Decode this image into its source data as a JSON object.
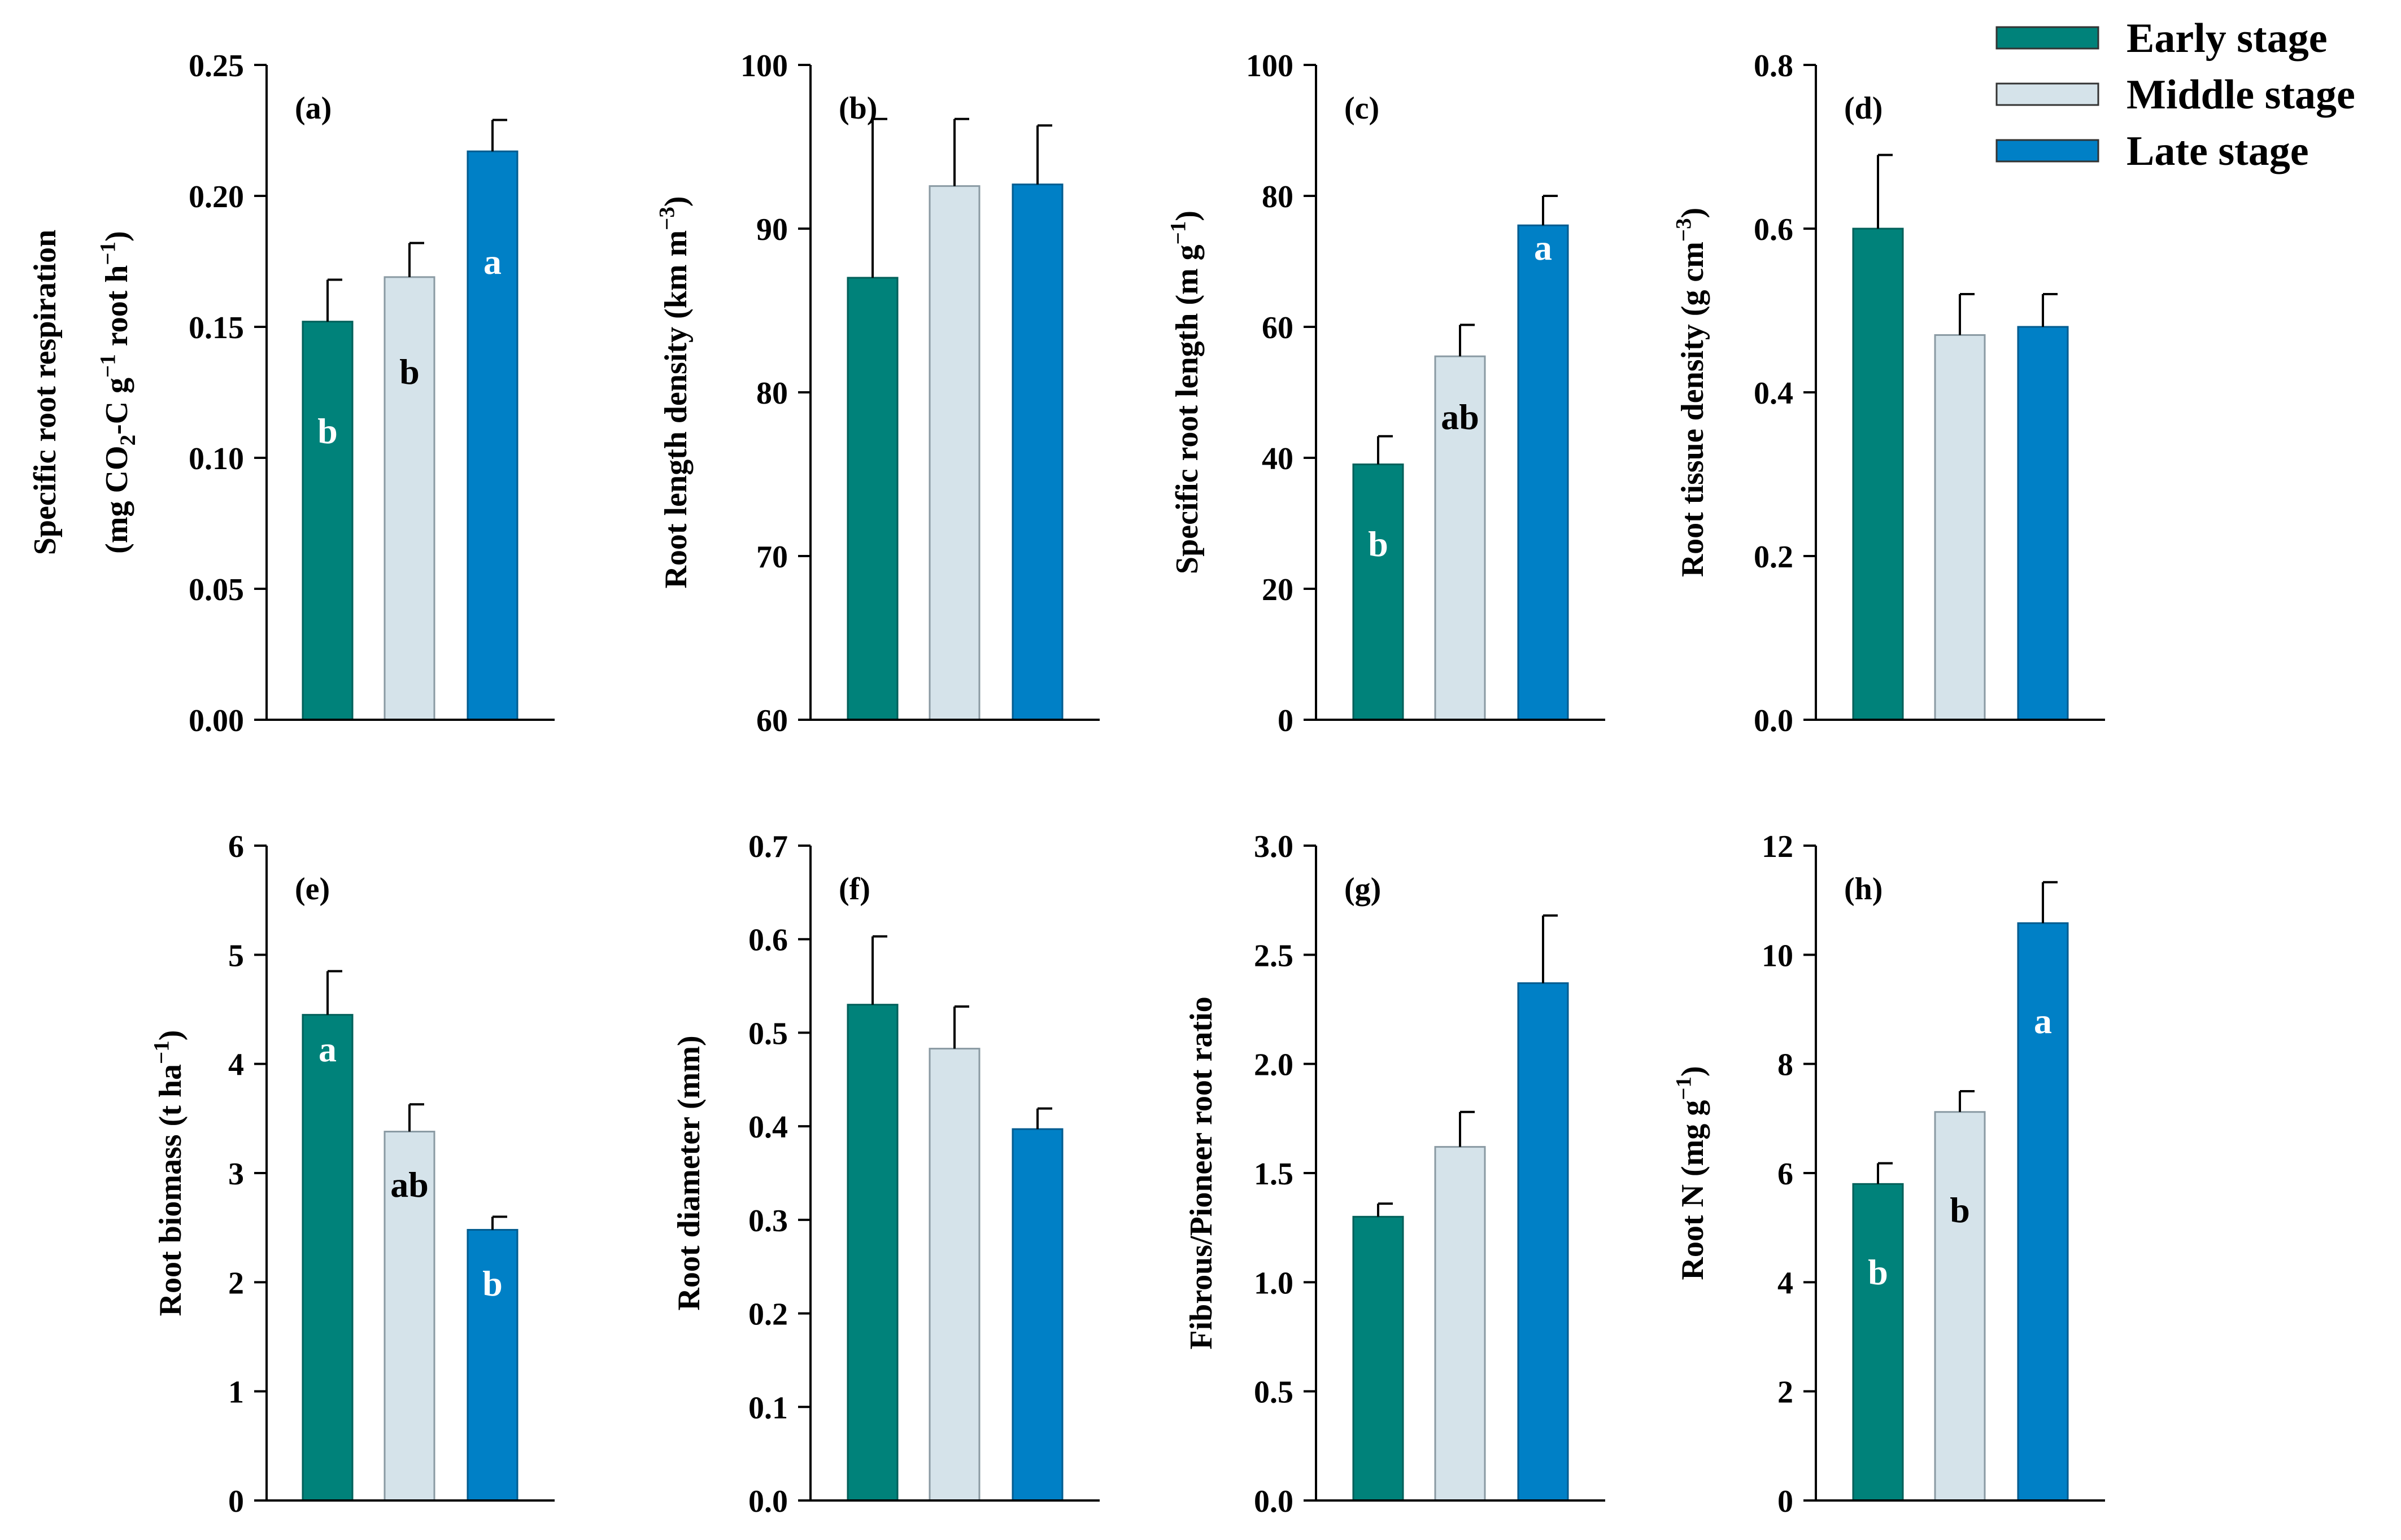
{
  "legend": {
    "placement": "top-right",
    "entries": [
      {
        "name": "Early stage",
        "color": "#00827a"
      },
      {
        "name": "Middle stage",
        "color": "#d5e3ea"
      },
      {
        "name": "Late stage",
        "color": "#0080c6"
      }
    ]
  },
  "chart_data": [
    {
      "type": "bar",
      "panel_label": "(a)",
      "ylabel_line1": "Specific root respiration",
      "ylabel_line2": {
        "parts": [
          "(mg CO",
          "2",
          "-C g",
          "−1",
          " root h",
          "−1",
          ")"
        ],
        "styles": [
          "n",
          "sub",
          "n",
          "sup",
          "n",
          "sup",
          "n"
        ]
      },
      "ylim": [
        0,
        0.25
      ],
      "ticks": [
        "0.00",
        "0.05",
        "0.10",
        "0.15",
        "0.20",
        "0.25"
      ],
      "categories": [
        "Early stage",
        "Middle stage",
        "Late stage"
      ],
      "values": [
        0.152,
        0.169,
        0.217
      ],
      "errors": [
        0.016,
        0.013,
        0.012
      ],
      "sig_letters": [
        "b",
        "b",
        "a"
      ],
      "grid": false
    },
    {
      "type": "bar",
      "panel_label": "(b)",
      "ylabel_line1": {
        "parts": [
          "Root length density (km m",
          "−3",
          ")"
        ],
        "styles": [
          "n",
          "sup",
          "n"
        ]
      },
      "ylim": [
        60,
        100
      ],
      "ticks": [
        "60",
        "70",
        "80",
        "90",
        "100"
      ],
      "categories": [
        "Early stage",
        "Middle stage",
        "Late stage"
      ],
      "values": [
        87.0,
        92.6,
        92.7
      ],
      "errors": [
        9.7,
        4.1,
        3.6
      ],
      "sig_letters": [
        "",
        "",
        ""
      ],
      "grid": false
    },
    {
      "type": "bar",
      "panel_label": "(c)",
      "ylabel_line1": {
        "parts": [
          "Specific root length (m g",
          "−1",
          ")"
        ],
        "styles": [
          "n",
          "sup",
          "n"
        ]
      },
      "ylim": [
        0,
        100
      ],
      "ticks": [
        "0",
        "20",
        "40",
        "60",
        "80",
        "100"
      ],
      "categories": [
        "Early stage",
        "Middle stage",
        "Late stage"
      ],
      "values": [
        39.0,
        55.5,
        75.5
      ],
      "errors": [
        4.3,
        4.8,
        4.5
      ],
      "sig_letters": [
        "b",
        "ab",
        "a"
      ],
      "grid": false
    },
    {
      "type": "bar",
      "panel_label": "(d)",
      "ylabel_line1": {
        "parts": [
          "Root tissue density (g cm",
          "−3",
          ")"
        ],
        "styles": [
          "n",
          "sup",
          "n"
        ]
      },
      "ylim": [
        0,
        0.8
      ],
      "ticks": [
        "0.0",
        "0.2",
        "0.4",
        "0.6",
        "0.8"
      ],
      "categories": [
        "Early stage",
        "Middle stage",
        "Late stage"
      ],
      "values": [
        0.6,
        0.47,
        0.48
      ],
      "errors": [
        0.09,
        0.05,
        0.04
      ],
      "sig_letters": [
        "",
        "",
        ""
      ],
      "grid": false
    },
    {
      "type": "bar",
      "panel_label": "(e)",
      "ylabel_line1": {
        "parts": [
          "Root biomass (t ha",
          "−1",
          ")"
        ],
        "styles": [
          "n",
          "sup",
          "n"
        ]
      },
      "ylim": [
        0,
        6
      ],
      "ticks": [
        "0",
        "1",
        "2",
        "3",
        "4",
        "5",
        "6"
      ],
      "categories": [
        "Early stage",
        "Middle stage",
        "Late stage"
      ],
      "values": [
        4.45,
        3.38,
        2.48
      ],
      "errors": [
        0.4,
        0.25,
        0.12
      ],
      "sig_letters": [
        "a",
        "ab",
        "b"
      ],
      "grid": false
    },
    {
      "type": "bar",
      "panel_label": "(f)",
      "ylabel_line1": "Root diameter (mm)",
      "ylim": [
        0,
        0.7
      ],
      "ticks": [
        "0.0",
        "0.1",
        "0.2",
        "0.3",
        "0.4",
        "0.5",
        "0.6",
        "0.7"
      ],
      "categories": [
        "Early stage",
        "Middle stage",
        "Late stage"
      ],
      "values": [
        0.53,
        0.483,
        0.397
      ],
      "errors": [
        0.073,
        0.045,
        0.022
      ],
      "sig_letters": [
        "",
        "",
        ""
      ],
      "grid": false
    },
    {
      "type": "bar",
      "panel_label": "(g)",
      "ylabel_line1": "Fibrous/Pioneer root ratio",
      "ylim": [
        0,
        3.0
      ],
      "ticks": [
        "0.0",
        "0.5",
        "1.0",
        "1.5",
        "2.0",
        "2.5",
        "3.0"
      ],
      "categories": [
        "Early stage",
        "Middle stage",
        "Late stage"
      ],
      "values": [
        1.3,
        1.62,
        2.37
      ],
      "errors": [
        0.06,
        0.16,
        0.31
      ],
      "sig_letters": [
        "",
        "",
        ""
      ],
      "grid": false
    },
    {
      "type": "bar",
      "panel_label": "(h)",
      "ylabel_line1": {
        "parts": [
          "Root N (mg g",
          "−1",
          ")"
        ],
        "styles": [
          "n",
          "sup",
          "n"
        ]
      },
      "ylim": [
        0,
        12
      ],
      "ticks": [
        "0",
        "2",
        "4",
        "6",
        "8",
        "10",
        "12"
      ],
      "categories": [
        "Early stage",
        "Middle stage",
        "Late stage"
      ],
      "values": [
        5.8,
        7.12,
        10.58
      ],
      "errors": [
        0.38,
        0.38,
        0.75
      ],
      "sig_letters": [
        "b",
        "b",
        "a"
      ],
      "grid": false
    }
  ]
}
